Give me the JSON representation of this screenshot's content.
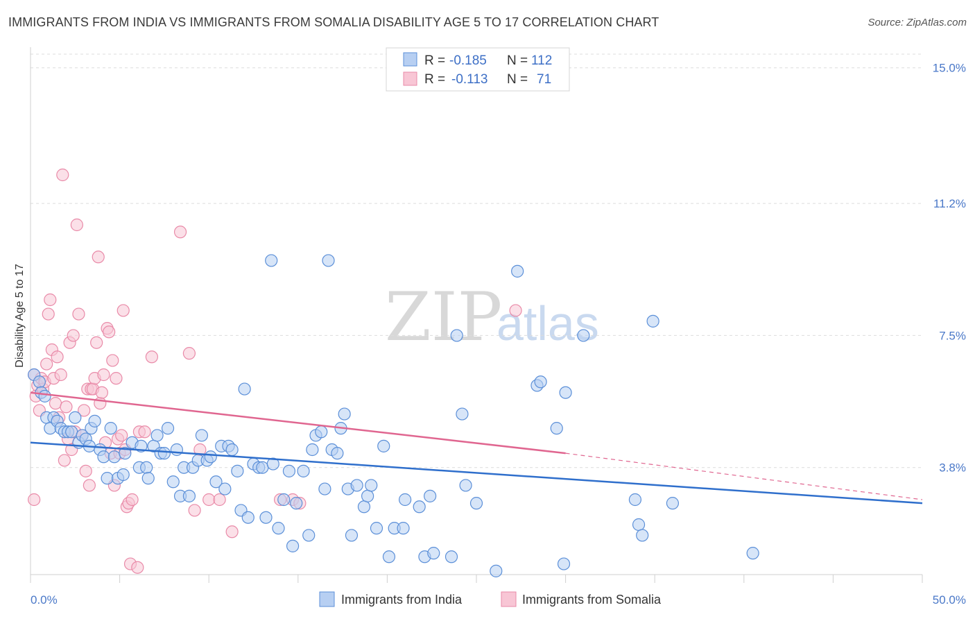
{
  "header": {
    "title": "IMMIGRANTS FROM INDIA VS IMMIGRANTS FROM SOMALIA DISABILITY AGE 5 TO 17 CORRELATION CHART",
    "source": "Source: ZipAtlas.com"
  },
  "watermark": {
    "zip": "ZIP",
    "atlas": "atlas"
  },
  "colors": {
    "india": "#5b8fd8",
    "india_fill": "#b7cff2",
    "india_line": "#2f6fcc",
    "somalia": "#e98aa8",
    "somalia_fill": "#f8c6d5",
    "somalia_line": "#e06690",
    "tick_label": "#4a78c8",
    "grid": "#dcdcdc"
  },
  "legend_top": {
    "india": {
      "r_label": "R =",
      "r_value": "-0.185",
      "n_label": "N =",
      "n_value": "112"
    },
    "somalia": {
      "r_label": "R =",
      "r_value": "-0.113",
      "n_label": "N =",
      "n_value": "71"
    }
  },
  "chart_data": {
    "type": "scatter",
    "xlabel": "",
    "ylabel": "Disability Age 5 to 17",
    "xlim": [
      0,
      50
    ],
    "ylim": [
      0.8,
      15.5
    ],
    "x_ticks": [
      0,
      5,
      10,
      15,
      20,
      25,
      30,
      35,
      40,
      45,
      50
    ],
    "x_tick_labels": {
      "0": "0.0%",
      "50": "50.0%"
    },
    "y_ticks": [
      3.8,
      7.5,
      11.2,
      15.0
    ],
    "y_tick_labels": [
      "3.8%",
      "7.5%",
      "11.2%",
      "15.0%"
    ],
    "grid": true,
    "legend_placement": "bottom-center",
    "series": [
      {
        "name": "Immigrants from India",
        "trend": {
          "x": [
            0,
            50
          ],
          "y": [
            4.5,
            2.8
          ],
          "dashed_after": null
        },
        "points": [
          [
            0.2,
            6.4
          ],
          [
            0.5,
            6.2
          ],
          [
            0.6,
            5.9
          ],
          [
            0.8,
            5.8
          ],
          [
            0.9,
            5.2
          ],
          [
            1.1,
            4.9
          ],
          [
            1.3,
            5.2
          ],
          [
            1.5,
            5.1
          ],
          [
            1.7,
            4.9
          ],
          [
            1.9,
            4.8
          ],
          [
            2.1,
            4.8
          ],
          [
            2.3,
            4.8
          ],
          [
            2.5,
            5.2
          ],
          [
            2.7,
            4.5
          ],
          [
            2.9,
            4.7
          ],
          [
            3.1,
            4.6
          ],
          [
            3.3,
            4.4
          ],
          [
            3.4,
            4.9
          ],
          [
            3.6,
            5.1
          ],
          [
            3.9,
            4.3
          ],
          [
            4.1,
            4.1
          ],
          [
            4.3,
            3.5
          ],
          [
            4.5,
            4.9
          ],
          [
            4.7,
            4.1
          ],
          [
            4.9,
            3.5
          ],
          [
            5.2,
            3.6
          ],
          [
            5.3,
            4.2
          ],
          [
            5.7,
            4.5
          ],
          [
            6.1,
            3.8
          ],
          [
            6.2,
            4.4
          ],
          [
            6.5,
            3.8
          ],
          [
            6.6,
            3.5
          ],
          [
            6.9,
            4.4
          ],
          [
            7.1,
            4.7
          ],
          [
            7.3,
            4.2
          ],
          [
            7.5,
            4.2
          ],
          [
            7.7,
            4.9
          ],
          [
            8.0,
            3.4
          ],
          [
            8.2,
            4.3
          ],
          [
            8.4,
            3.0
          ],
          [
            8.6,
            3.8
          ],
          [
            8.9,
            3.0
          ],
          [
            9.1,
            3.8
          ],
          [
            9.4,
            4.0
          ],
          [
            9.6,
            4.7
          ],
          [
            9.9,
            4.0
          ],
          [
            10.1,
            4.1
          ],
          [
            10.4,
            3.4
          ],
          [
            10.7,
            4.4
          ],
          [
            10.9,
            3.2
          ],
          [
            11.1,
            4.4
          ],
          [
            11.3,
            4.3
          ],
          [
            11.6,
            3.7
          ],
          [
            11.8,
            2.6
          ],
          [
            12.0,
            6.0
          ],
          [
            12.2,
            2.4
          ],
          [
            12.5,
            3.9
          ],
          [
            12.8,
            3.8
          ],
          [
            13.0,
            3.8
          ],
          [
            13.2,
            2.4
          ],
          [
            13.5,
            9.6
          ],
          [
            13.6,
            3.9
          ],
          [
            13.9,
            2.1
          ],
          [
            14.2,
            2.9
          ],
          [
            14.5,
            3.7
          ],
          [
            14.7,
            1.6
          ],
          [
            14.9,
            2.8
          ],
          [
            15.3,
            3.7
          ],
          [
            15.6,
            1.9
          ],
          [
            15.8,
            4.3
          ],
          [
            16.0,
            4.7
          ],
          [
            16.3,
            4.8
          ],
          [
            16.5,
            3.2
          ],
          [
            16.7,
            9.6
          ],
          [
            16.9,
            4.3
          ],
          [
            17.2,
            4.2
          ],
          [
            17.4,
            4.9
          ],
          [
            17.6,
            5.3
          ],
          [
            17.8,
            3.2
          ],
          [
            18.0,
            1.9
          ],
          [
            18.3,
            3.3
          ],
          [
            18.7,
            2.7
          ],
          [
            18.9,
            3.0
          ],
          [
            19.1,
            3.3
          ],
          [
            19.4,
            2.1
          ],
          [
            19.8,
            4.4
          ],
          [
            20.1,
            1.3
          ],
          [
            20.4,
            2.1
          ],
          [
            20.9,
            2.1
          ],
          [
            21.0,
            2.9
          ],
          [
            21.8,
            2.7
          ],
          [
            22.1,
            1.3
          ],
          [
            22.4,
            3.0
          ],
          [
            22.6,
            1.4
          ],
          [
            23.6,
            1.3
          ],
          [
            23.9,
            7.5
          ],
          [
            24.2,
            5.3
          ],
          [
            24.4,
            3.3
          ],
          [
            25.0,
            2.8
          ],
          [
            26.1,
            0.9
          ],
          [
            27.3,
            9.3
          ],
          [
            28.4,
            6.1
          ],
          [
            28.6,
            6.2
          ],
          [
            29.5,
            4.9
          ],
          [
            29.9,
            1.1
          ],
          [
            30.0,
            5.9
          ],
          [
            31.0,
            7.5
          ],
          [
            33.9,
            2.9
          ],
          [
            34.1,
            2.2
          ],
          [
            34.3,
            1.9
          ],
          [
            34.9,
            7.9
          ],
          [
            36.0,
            2.8
          ],
          [
            40.5,
            1.4
          ]
        ]
      },
      {
        "name": "Immigrants from Somalia",
        "trend": {
          "x": [
            0,
            30,
            50
          ],
          "y": [
            5.9,
            4.2,
            2.9
          ],
          "dashed_after": 30
        },
        "points": [
          [
            0.2,
            6.4
          ],
          [
            0.3,
            5.8
          ],
          [
            0.4,
            6.1
          ],
          [
            0.5,
            5.4
          ],
          [
            0.6,
            6.3
          ],
          [
            0.7,
            6.0
          ],
          [
            0.8,
            6.2
          ],
          [
            0.9,
            6.7
          ],
          [
            1.0,
            8.1
          ],
          [
            1.1,
            8.5
          ],
          [
            1.2,
            7.1
          ],
          [
            1.3,
            6.3
          ],
          [
            1.4,
            5.6
          ],
          [
            1.5,
            6.9
          ],
          [
            1.6,
            5.2
          ],
          [
            1.7,
            6.4
          ],
          [
            1.8,
            12.0
          ],
          [
            1.9,
            4.0
          ],
          [
            2.0,
            5.5
          ],
          [
            2.1,
            4.6
          ],
          [
            2.2,
            7.3
          ],
          [
            2.3,
            4.3
          ],
          [
            2.4,
            7.5
          ],
          [
            2.5,
            4.8
          ],
          [
            2.6,
            10.6
          ],
          [
            2.7,
            8.1
          ],
          [
            2.9,
            4.7
          ],
          [
            3.0,
            5.4
          ],
          [
            3.1,
            3.7
          ],
          [
            3.2,
            6.0
          ],
          [
            3.3,
            3.3
          ],
          [
            3.4,
            6.0
          ],
          [
            3.5,
            6.0
          ],
          [
            3.6,
            6.3
          ],
          [
            3.7,
            7.3
          ],
          [
            3.8,
            9.7
          ],
          [
            3.9,
            5.6
          ],
          [
            4.0,
            5.9
          ],
          [
            4.1,
            6.4
          ],
          [
            4.2,
            4.5
          ],
          [
            4.3,
            7.7
          ],
          [
            4.4,
            7.6
          ],
          [
            4.5,
            4.2
          ],
          [
            4.6,
            6.8
          ],
          [
            4.7,
            3.3
          ],
          [
            4.8,
            6.3
          ],
          [
            4.9,
            4.6
          ],
          [
            5.0,
            4.2
          ],
          [
            5.1,
            4.7
          ],
          [
            5.2,
            8.2
          ],
          [
            5.3,
            4.3
          ],
          [
            5.4,
            2.7
          ],
          [
            5.5,
            2.8
          ],
          [
            5.6,
            1.1
          ],
          [
            5.7,
            2.9
          ],
          [
            6.0,
            1.0
          ],
          [
            6.1,
            4.8
          ],
          [
            6.4,
            4.8
          ],
          [
            6.8,
            6.9
          ],
          [
            8.4,
            10.4
          ],
          [
            8.9,
            7.0
          ],
          [
            9.2,
            2.6
          ],
          [
            9.5,
            4.3
          ],
          [
            10.0,
            2.9
          ],
          [
            10.6,
            2.9
          ],
          [
            11.3,
            2.0
          ],
          [
            14.0,
            2.9
          ],
          [
            14.7,
            2.9
          ],
          [
            15.1,
            2.8
          ],
          [
            27.2,
            8.2
          ],
          [
            0.2,
            2.9
          ]
        ]
      }
    ]
  }
}
